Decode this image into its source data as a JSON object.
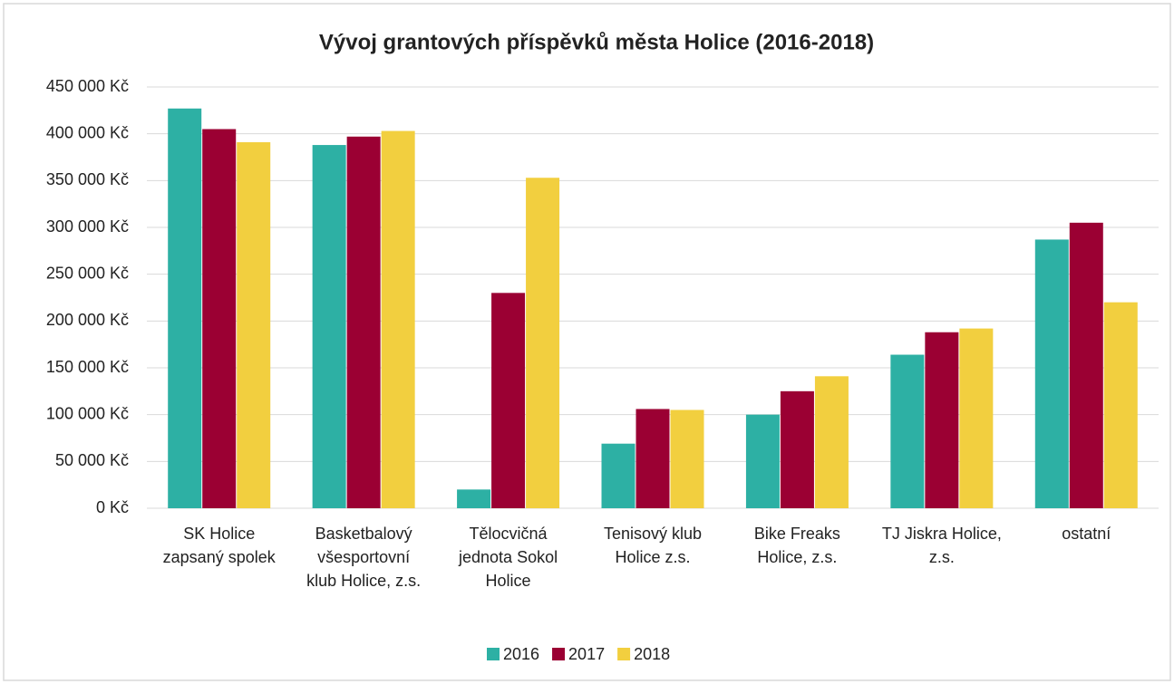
{
  "chart_data": {
    "type": "bar",
    "title": "Vývoj grantových příspěvků města Holice (2016-2018)",
    "categories": [
      "SK Holice zapsaný spolek",
      "Basketbalový všesportovní klub Holice, z.s.",
      "Tělocvičná jednota Sokol Holice",
      "Tenisový klub Holice z.s.",
      "Bike Freaks Holice, z.s.",
      "TJ Jiskra Holice, z.s.",
      "ostatní"
    ],
    "series": [
      {
        "name": "2016",
        "color": "#2db0a4",
        "values": [
          427000,
          388000,
          20000,
          69000,
          100000,
          164000,
          287000
        ]
      },
      {
        "name": "2017",
        "color": "#9b0033",
        "values": [
          405000,
          397000,
          230000,
          106000,
          125000,
          188000,
          305000
        ]
      },
      {
        "name": "2018",
        "color": "#f2cf3f",
        "values": [
          391000,
          403000,
          353000,
          105000,
          141000,
          192000,
          220000
        ]
      }
    ],
    "ylim": [
      0,
      450000
    ],
    "yticks": [
      {
        "value": 0,
        "label": "0 Kč"
      },
      {
        "value": 50000,
        "label": "50 000 Kč"
      },
      {
        "value": 100000,
        "label": "100 000 Kč"
      },
      {
        "value": 150000,
        "label": "150 000 Kč"
      },
      {
        "value": 200000,
        "label": "200 000 Kč"
      },
      {
        "value": 250000,
        "label": "250 000 Kč"
      },
      {
        "value": 300000,
        "label": "300 000 Kč"
      },
      {
        "value": 350000,
        "label": "350 000 Kč"
      },
      {
        "value": 400000,
        "label": "400 000 Kč"
      },
      {
        "value": 450000,
        "label": "450 000 Kč"
      }
    ],
    "grid": true,
    "legend": "bottom"
  }
}
